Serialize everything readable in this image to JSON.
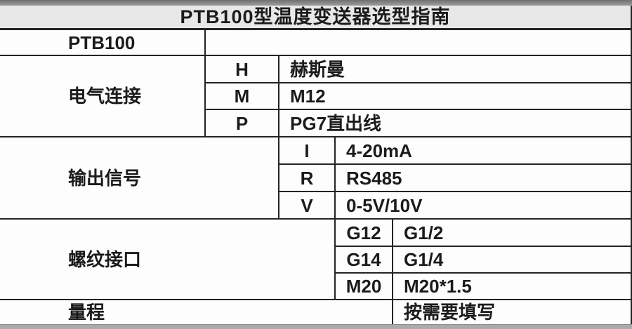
{
  "page_title": "PTB100型温度变送器选型指南",
  "table": {
    "model": {
      "label": "PTB100",
      "value": ""
    },
    "sections": [
      {
        "label": "电气连接",
        "options": [
          {
            "code": "H",
            "desc": "赫斯曼"
          },
          {
            "code": "M",
            "desc": "M12"
          },
          {
            "code": "P",
            "desc": "PG7直出线"
          }
        ]
      },
      {
        "label": "输出信号",
        "options": [
          {
            "code": "I",
            "desc": "4-20mA"
          },
          {
            "code": "R",
            "desc": "RS485"
          },
          {
            "code": "V",
            "desc": "0-5V/10V"
          }
        ]
      },
      {
        "label": "螺纹接口",
        "options": [
          {
            "code": "G12",
            "desc": "G1/2"
          },
          {
            "code": "G14",
            "desc": "G1/4"
          },
          {
            "code": "M20",
            "desc": "M20*1.5"
          }
        ]
      }
    ],
    "range": {
      "label": "量程",
      "value": "按需要填写"
    }
  },
  "colors": {
    "border": "#242424",
    "title_bg": "#e8e8e8",
    "cell_bg": "#fdfdfd",
    "top_bar": "#8f8f8f",
    "bottom_bar": "#a6a6a6",
    "text": "#1b1b1b"
  }
}
